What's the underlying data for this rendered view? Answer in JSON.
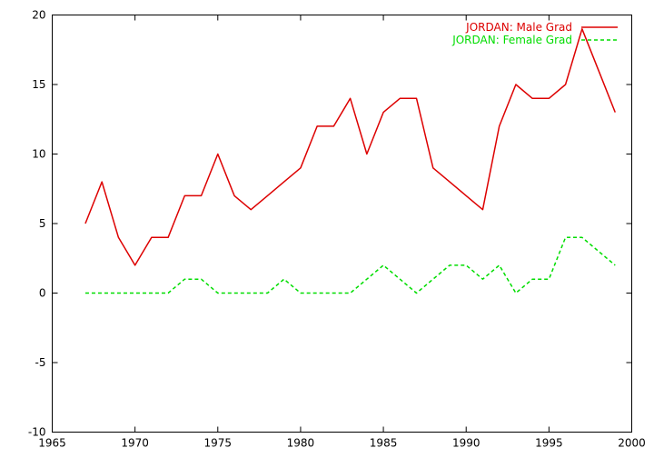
{
  "chart_data": {
    "type": "line",
    "title": "",
    "xlabel": "",
    "ylabel": "",
    "xlim": [
      1965,
      2000
    ],
    "ylim": [
      -10,
      20
    ],
    "x_ticks": [
      1965,
      1970,
      1975,
      1980,
      1985,
      1990,
      1995,
      2000
    ],
    "y_ticks": [
      -10,
      -5,
      0,
      5,
      10,
      15,
      20
    ],
    "grid": false,
    "legend_position": "top-right",
    "x": [
      1967,
      1968,
      1969,
      1970,
      1971,
      1972,
      1973,
      1974,
      1975,
      1976,
      1977,
      1978,
      1979,
      1980,
      1981,
      1982,
      1983,
      1984,
      1985,
      1986,
      1987,
      1988,
      1989,
      1990,
      1991,
      1992,
      1993,
      1994,
      1995,
      1996,
      1997,
      1998,
      1999
    ],
    "series": [
      {
        "name": "JORDAN: Male Grad",
        "color": "#dd0000",
        "dash": "solid",
        "values": [
          5,
          8,
          4,
          2,
          4,
          4,
          7,
          7,
          10,
          7,
          6,
          7,
          8,
          9,
          12,
          12,
          14,
          10,
          13,
          14,
          14,
          9,
          8,
          7,
          6,
          12,
          15,
          14,
          14,
          15,
          19,
          16,
          13
        ]
      },
      {
        "name": "JORDAN: Female Grad",
        "color": "#00dd00",
        "dash": "dashed",
        "values": [
          0,
          0,
          0,
          0,
          0,
          0,
          1,
          1,
          0,
          0,
          0,
          0,
          1,
          0,
          0,
          0,
          0,
          1,
          2,
          1,
          0,
          1,
          2,
          2,
          1,
          2,
          0,
          1,
          1,
          4,
          4,
          3,
          2
        ]
      }
    ]
  }
}
